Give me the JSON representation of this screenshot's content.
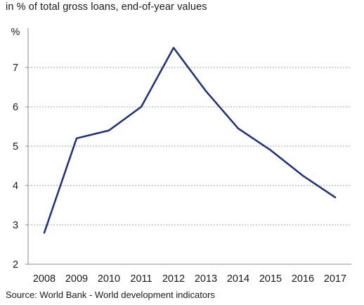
{
  "chart_data": {
    "type": "line",
    "subtitle": "in % of total gross loans, end-of-year values",
    "ylabel": "%",
    "xlabel": "",
    "categories": [
      "2008",
      "2009",
      "2010",
      "2011",
      "2012",
      "2013",
      "2014",
      "2015",
      "2016",
      "2017"
    ],
    "series": [
      {
        "values": [
          2.8,
          5.2,
          5.4,
          6.0,
          7.5,
          6.4,
          5.45,
          4.9,
          4.25,
          3.7
        ]
      }
    ],
    "ylim": [
      2,
      8
    ],
    "yticks": [
      2,
      3,
      4,
      5,
      6,
      7
    ],
    "grid": true,
    "line_color": "#1f2f7a",
    "grid_color": "#a6a6a6",
    "source": "Source: World Bank - World development indicators"
  }
}
